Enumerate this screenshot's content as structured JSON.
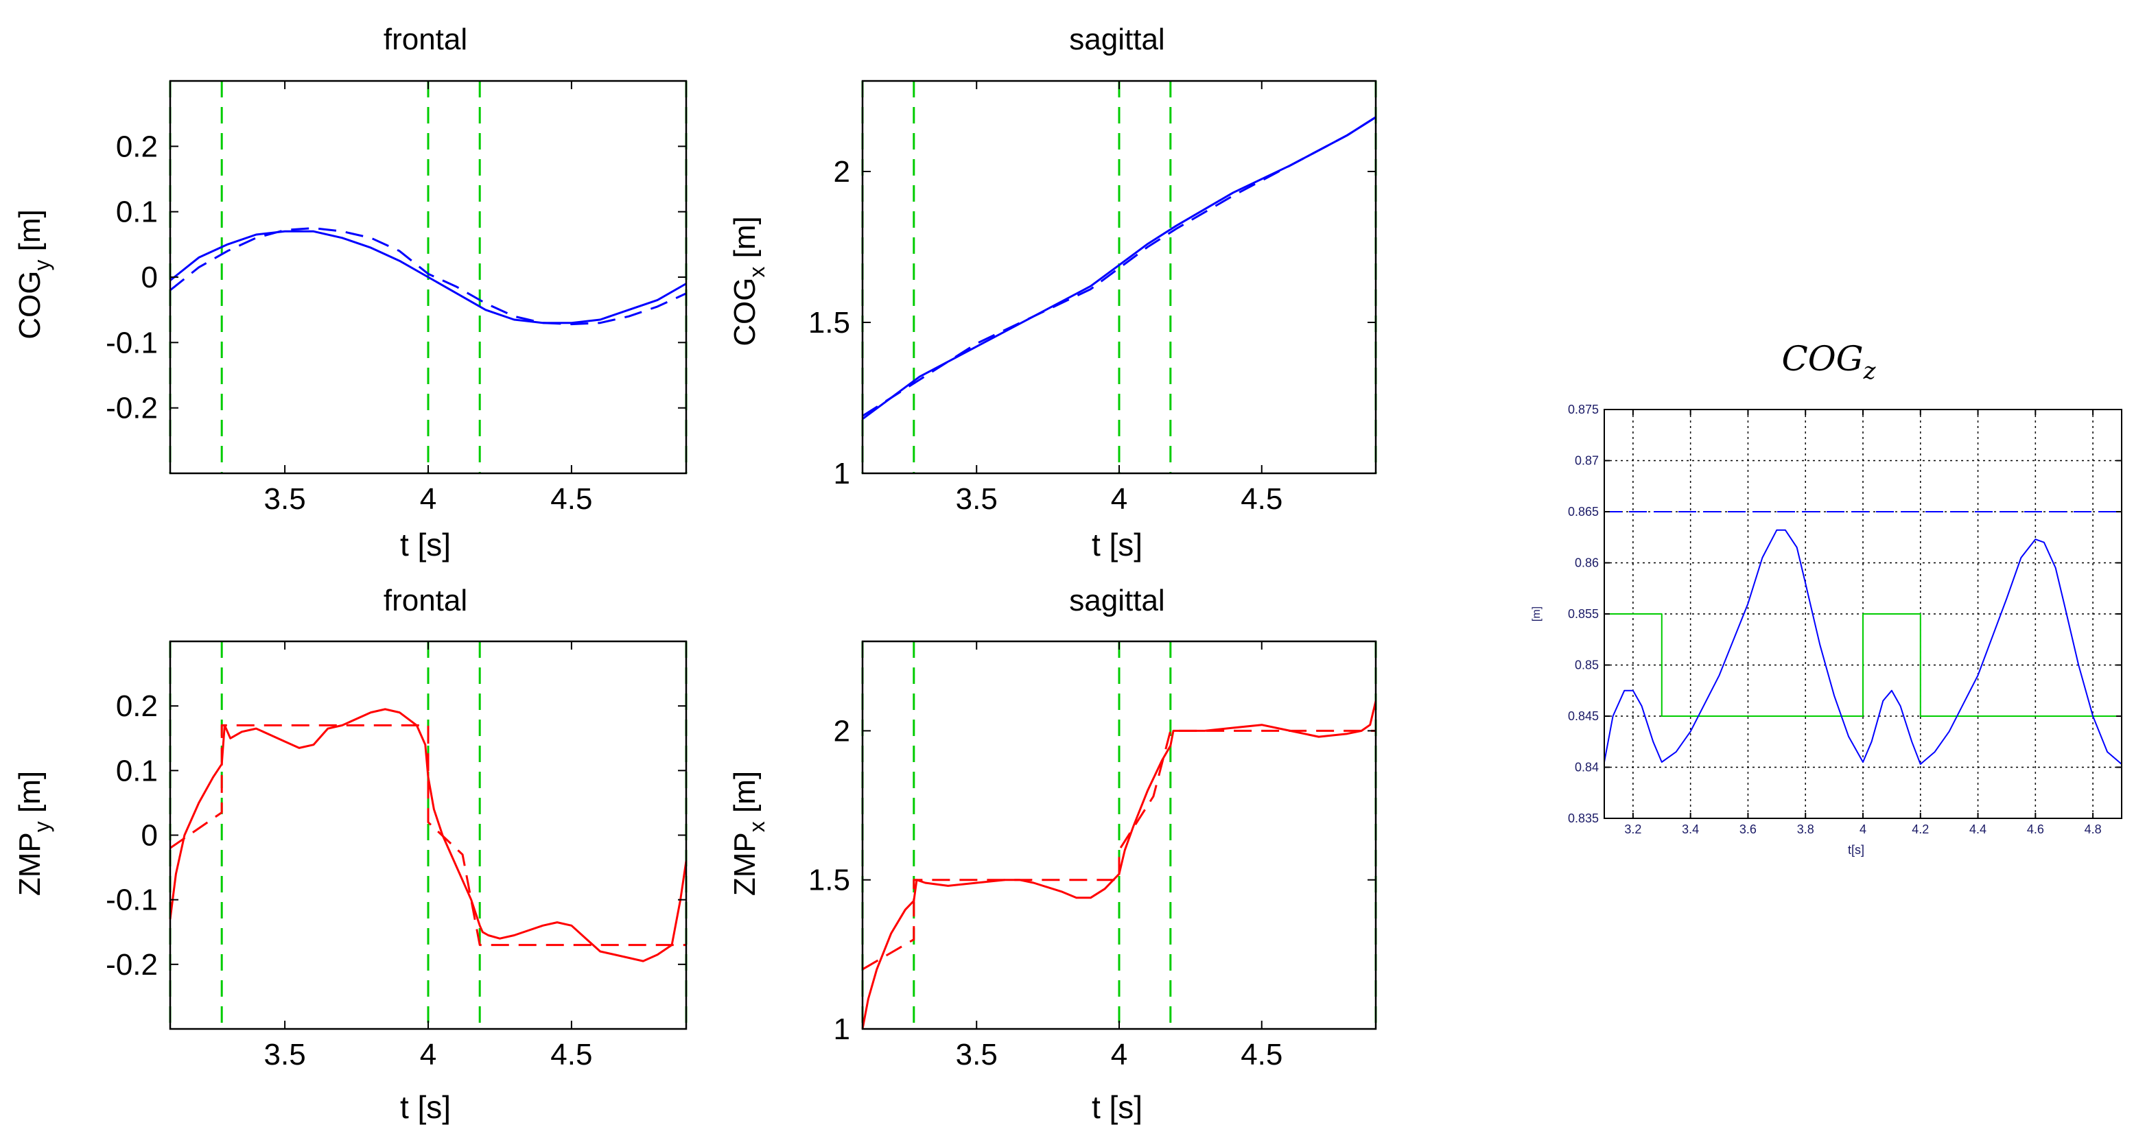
{
  "figure": {
    "panels": [
      {
        "id": "cogy",
        "title": "frontal",
        "xlabel": "t [s]"
      },
      {
        "id": "cogx",
        "title": "sagittal",
        "xlabel": "t [s]"
      },
      {
        "id": "zmpy",
        "title": "frontal",
        "xlabel": "t [s]"
      },
      {
        "id": "zmpx",
        "title": "sagittal",
        "xlabel": "t [s]"
      },
      {
        "id": "cogz",
        "title": "COG",
        "title_sub": "z",
        "xlabel": "t[s]",
        "ylabel": "[m]"
      }
    ]
  },
  "colors": {
    "blue": "#0000ff",
    "red": "#ff0000",
    "green": "#00cc00",
    "green_dark": "#008800",
    "grid": "#000000"
  },
  "chart_data": [
    {
      "type": "line",
      "title": "frontal",
      "xlabel": "t [s]",
      "ylabel": "COGy [m]",
      "xlim": [
        3.1,
        4.9
      ],
      "ylim": [
        -0.3,
        0.3
      ],
      "xticks": [
        3.5,
        4,
        4.5
      ],
      "yticks": [
        -0.2,
        -0.1,
        0,
        0.1,
        0.2
      ],
      "grid": false,
      "vlines": [
        3.1,
        3.28,
        4.0,
        4.18,
        4.9
      ],
      "series": [
        {
          "style": "solid",
          "color": "blue",
          "x": [
            3.1,
            3.2,
            3.3,
            3.4,
            3.5,
            3.6,
            3.7,
            3.8,
            3.9,
            4.0,
            4.1,
            4.2,
            4.3,
            4.4,
            4.5,
            4.6,
            4.7,
            4.8,
            4.9
          ],
          "y": [
            -0.005,
            0.03,
            0.05,
            0.065,
            0.07,
            0.07,
            0.06,
            0.045,
            0.025,
            0.0,
            -0.025,
            -0.05,
            -0.065,
            -0.07,
            -0.07,
            -0.065,
            -0.05,
            -0.035,
            -0.01
          ]
        },
        {
          "style": "dashed",
          "color": "blue",
          "x": [
            3.1,
            3.2,
            3.3,
            3.4,
            3.5,
            3.6,
            3.7,
            3.8,
            3.9,
            4.0,
            4.1,
            4.2,
            4.3,
            4.4,
            4.5,
            4.6,
            4.7,
            4.8,
            4.9
          ],
          "y": [
            -0.02,
            0.015,
            0.04,
            0.06,
            0.072,
            0.075,
            0.07,
            0.06,
            0.04,
            0.005,
            -0.015,
            -0.04,
            -0.06,
            -0.07,
            -0.072,
            -0.07,
            -0.06,
            -0.045,
            -0.025
          ]
        }
      ]
    },
    {
      "type": "line",
      "title": "sagittal",
      "xlabel": "t [s]",
      "ylabel": "COGx [m]",
      "xlim": [
        3.1,
        4.9
      ],
      "ylim": [
        1,
        2.3
      ],
      "xticks": [
        3.5,
        4,
        4.5
      ],
      "yticks": [
        1,
        1.5,
        2
      ],
      "grid": false,
      "vlines": [
        3.1,
        3.28,
        4.0,
        4.18,
        4.9
      ],
      "series": [
        {
          "style": "solid",
          "color": "blue",
          "x": [
            3.1,
            3.3,
            3.5,
            3.7,
            3.9,
            4.0,
            4.1,
            4.2,
            4.4,
            4.6,
            4.8,
            4.9
          ],
          "y": [
            1.18,
            1.32,
            1.42,
            1.52,
            1.62,
            1.69,
            1.76,
            1.82,
            1.93,
            2.02,
            2.12,
            2.18
          ]
        },
        {
          "style": "dashed",
          "color": "blue",
          "x": [
            3.1,
            3.3,
            3.5,
            3.7,
            3.9,
            4.0,
            4.1,
            4.2,
            4.4,
            4.6,
            4.8,
            4.9
          ],
          "y": [
            1.19,
            1.31,
            1.43,
            1.52,
            1.61,
            1.68,
            1.75,
            1.81,
            1.92,
            2.02,
            2.12,
            2.18
          ]
        }
      ]
    },
    {
      "type": "line",
      "title": "frontal",
      "xlabel": "t [s]",
      "ylabel": "ZMPy [m]",
      "xlim": [
        3.1,
        4.9
      ],
      "ylim": [
        -0.3,
        0.3
      ],
      "xticks": [
        3.5,
        4,
        4.5
      ],
      "yticks": [
        -0.2,
        -0.1,
        0,
        0.1,
        0.2
      ],
      "grid": false,
      "vlines": [
        3.1,
        3.28,
        4.0,
        4.18,
        4.9
      ],
      "series": [
        {
          "style": "solid",
          "color": "red",
          "x": [
            3.1,
            3.12,
            3.15,
            3.2,
            3.25,
            3.28,
            3.29,
            3.31,
            3.35,
            3.4,
            3.5,
            3.55,
            3.6,
            3.65,
            3.7,
            3.8,
            3.85,
            3.9,
            3.96,
            3.99,
            4.0,
            4.02,
            4.05,
            4.1,
            4.15,
            4.18,
            4.19,
            4.21,
            4.25,
            4.3,
            4.4,
            4.45,
            4.5,
            4.55,
            4.6,
            4.7,
            4.75,
            4.8,
            4.85,
            4.88,
            4.9
          ],
          "y": [
            -0.13,
            -0.06,
            0.0,
            0.05,
            0.09,
            0.11,
            0.17,
            0.15,
            0.16,
            0.165,
            0.145,
            0.135,
            0.14,
            0.165,
            0.17,
            0.19,
            0.195,
            0.19,
            0.17,
            0.14,
            0.09,
            0.04,
            0.0,
            -0.05,
            -0.1,
            -0.14,
            -0.15,
            -0.155,
            -0.16,
            -0.155,
            -0.14,
            -0.135,
            -0.14,
            -0.16,
            -0.18,
            -0.19,
            -0.195,
            -0.185,
            -0.17,
            -0.1,
            -0.04
          ]
        },
        {
          "style": "dashed",
          "color": "red",
          "x": [
            3.1,
            3.28,
            3.28,
            4.0,
            4.0,
            4.12,
            4.18,
            4.9
          ],
          "y": [
            -0.02,
            0.035,
            0.17,
            0.17,
            0.02,
            -0.03,
            -0.17,
            -0.17
          ]
        }
      ]
    },
    {
      "type": "line",
      "title": "sagittal",
      "xlabel": "t [s]",
      "ylabel": "ZMPx [m]",
      "xlim": [
        3.1,
        4.9
      ],
      "ylim": [
        1,
        2.3
      ],
      "xticks": [
        3.5,
        4,
        4.5
      ],
      "yticks": [
        1,
        1.5,
        2
      ],
      "grid": false,
      "vlines": [
        3.1,
        3.28,
        4.0,
        4.18,
        4.9
      ],
      "series": [
        {
          "style": "solid",
          "color": "red",
          "x": [
            3.1,
            3.12,
            3.15,
            3.2,
            3.25,
            3.28,
            3.29,
            3.32,
            3.4,
            3.5,
            3.6,
            3.65,
            3.7,
            3.8,
            3.85,
            3.9,
            3.95,
            4.0,
            4.02,
            4.05,
            4.1,
            4.15,
            4.18,
            4.19,
            4.22,
            4.3,
            4.4,
            4.5,
            4.6,
            4.7,
            4.8,
            4.85,
            4.88,
            4.9
          ],
          "y": [
            1.0,
            1.1,
            1.2,
            1.32,
            1.4,
            1.43,
            1.5,
            1.49,
            1.48,
            1.49,
            1.5,
            1.5,
            1.49,
            1.46,
            1.44,
            1.44,
            1.47,
            1.52,
            1.6,
            1.68,
            1.8,
            1.9,
            1.95,
            2.0,
            2.0,
            2.0,
            2.01,
            2.02,
            2.0,
            1.98,
            1.99,
            2.0,
            2.02,
            2.1
          ]
        },
        {
          "style": "dashed",
          "color": "red",
          "x": [
            3.1,
            3.28,
            3.28,
            4.0,
            4.0,
            4.12,
            4.18,
            4.9
          ],
          "y": [
            1.2,
            1.3,
            1.5,
            1.5,
            1.6,
            1.78,
            2.0,
            2.0
          ]
        }
      ]
    },
    {
      "type": "line",
      "title": "COGz",
      "xlabel": "t[s]",
      "ylabel": "[m]",
      "xlim": [
        3.1,
        4.9
      ],
      "ylim": [
        0.835,
        0.875
      ],
      "xticks": [
        3.2,
        3.4,
        3.6,
        3.8,
        4.0,
        4.2,
        4.4,
        4.6,
        4.8
      ],
      "xtick_labels": [
        "3.2",
        "3.4",
        "3.6",
        "3.8",
        "4",
        "4.2",
        "4.4",
        "4.6",
        "4.8"
      ],
      "yticks": [
        0.835,
        0.84,
        0.845,
        0.85,
        0.855,
        0.86,
        0.865,
        0.87,
        0.875
      ],
      "ytick_labels": [
        "0.835",
        "0.84",
        "0.845",
        "0.85",
        "0.855",
        "0.86",
        "0.865",
        "0.87",
        "0.875"
      ],
      "grid": true,
      "series": [
        {
          "style": "dashed",
          "color": "blue",
          "x": [
            3.1,
            4.9
          ],
          "y": [
            0.865,
            0.865
          ]
        },
        {
          "style": "solid",
          "color": "green",
          "x": [
            3.1,
            3.1,
            3.3,
            3.3,
            4.0,
            4.0,
            4.2,
            4.2,
            4.9
          ],
          "y": [
            0.845,
            0.855,
            0.855,
            0.845,
            0.845,
            0.855,
            0.855,
            0.845,
            0.845
          ]
        },
        {
          "style": "solid",
          "color": "blue",
          "x": [
            3.1,
            3.13,
            3.17,
            3.2,
            3.23,
            3.27,
            3.3,
            3.35,
            3.4,
            3.5,
            3.6,
            3.65,
            3.7,
            3.73,
            3.77,
            3.8,
            3.85,
            3.9,
            3.95,
            4.0,
            4.03,
            4.07,
            4.1,
            4.13,
            4.17,
            4.2,
            4.25,
            4.3,
            4.4,
            4.5,
            4.55,
            4.6,
            4.63,
            4.67,
            4.7,
            4.75,
            4.8,
            4.85,
            4.9
          ],
          "y": [
            0.8405,
            0.845,
            0.8475,
            0.8475,
            0.846,
            0.8425,
            0.8405,
            0.8415,
            0.8435,
            0.849,
            0.856,
            0.8605,
            0.8632,
            0.8632,
            0.8615,
            0.858,
            0.852,
            0.847,
            0.843,
            0.8405,
            0.8425,
            0.8465,
            0.8475,
            0.846,
            0.8425,
            0.8403,
            0.8415,
            0.8435,
            0.849,
            0.8565,
            0.8605,
            0.8623,
            0.862,
            0.8595,
            0.856,
            0.85,
            0.845,
            0.8415,
            0.8403
          ]
        }
      ]
    }
  ]
}
